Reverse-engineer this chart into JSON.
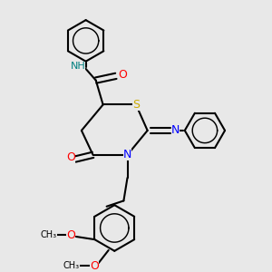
{
  "bg_color": "#e8e8e8",
  "bond_color": "#000000",
  "bond_lw": 1.5,
  "atom_colors": {
    "S": "#ccaa00",
    "N": "#0000ff",
    "O": "#ff0000",
    "NH": "#008080",
    "C": "#000000"
  },
  "font_size": 8.5,
  "fig_size": [
    3.0,
    3.0
  ],
  "dpi": 100
}
